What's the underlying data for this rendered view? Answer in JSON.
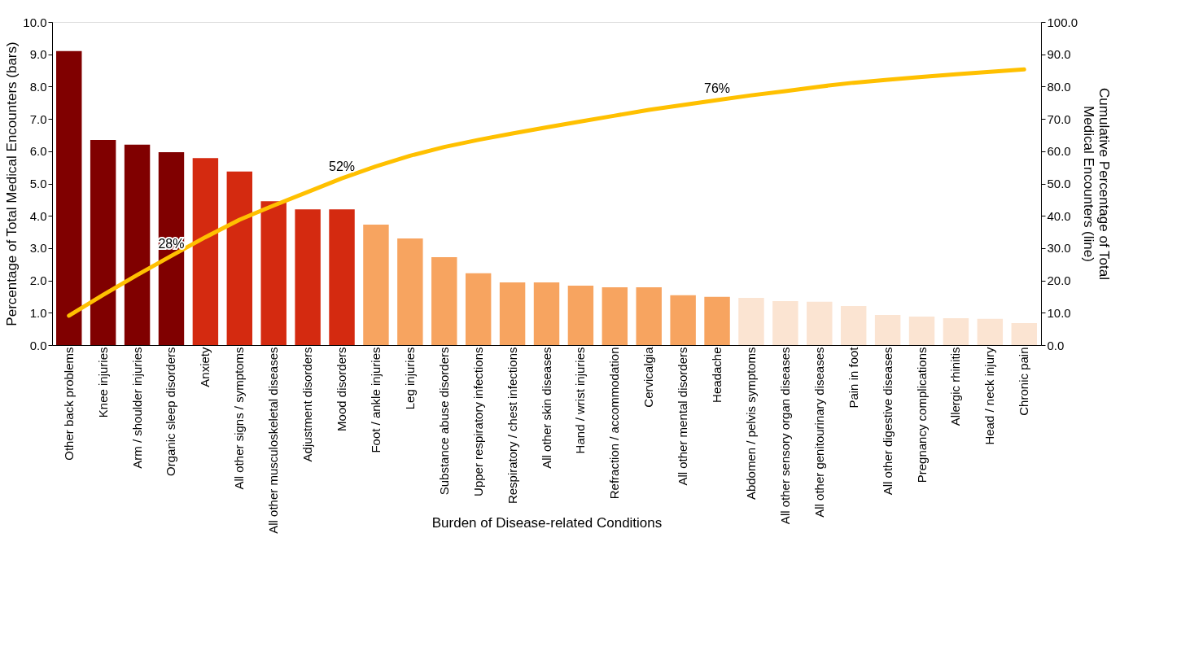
{
  "chart_data": {
    "type": "bar",
    "xlabel": "Burden of Disease-related Conditions",
    "ylabel": "Percentage of Total Medical Encounters (bars)",
    "y2label": "Cumulative Percentage of Total Medical Encounters (line)",
    "categories": [
      "Other back problems",
      "Knee injuries",
      "Arm / shoulder injuries",
      "Organic sleep disorders",
      "Anxiety",
      "All other signs / symptoms",
      "All other musculoskeletal diseases",
      "Adjustment disorders",
      "Mood disorders",
      "Foot / ankle injuries",
      "Leg injuries",
      "Substance abuse disorders",
      "Upper respiratory infections",
      "Respiratory / chest infections",
      "All other skin diseases",
      "Hand / wrist injuries",
      "Refraction / accommodation",
      "Cervicalgia",
      "All other mental disorders",
      "Headache",
      "Abdomen / pelvis symptoms",
      "All other sensory organ diseases",
      "All other genitourinary diseases",
      "Pain in foot",
      "All other digestive diseases",
      "Pregnancy complications",
      "Allergic rhinitis",
      "Head / neck injury",
      "Chronic pain"
    ],
    "series": [
      {
        "values": [
          9.1,
          6.35,
          6.2,
          5.97,
          5.79,
          5.37,
          4.45,
          4.2,
          4.2,
          3.73,
          3.3,
          2.72,
          2.22,
          1.94,
          1.94,
          1.84,
          1.79,
          1.79,
          1.54,
          1.49,
          1.46,
          1.36,
          1.34,
          1.21,
          0.93,
          0.88,
          0.83,
          0.81,
          0.68
        ],
        "colors": [
          "#800000",
          "#800000",
          "#800000",
          "#800000",
          "#d42a10",
          "#d42a10",
          "#d42a10",
          "#d42a10",
          "#d42a10",
          "#f7a460",
          "#f7a460",
          "#f7a460",
          "#f7a460",
          "#f7a460",
          "#f7a460",
          "#f7a460",
          "#f7a460",
          "#f7a460",
          "#f7a460",
          "#f7a460",
          "#fbe4d2",
          "#fbe4d2",
          "#fbe4d2",
          "#fbe4d2",
          "#fbe4d2",
          "#fbe4d2",
          "#fbe4d2",
          "#fbe4d2",
          "#fbe4d2"
        ]
      },
      {
        "type": "line",
        "axis": "y2",
        "color": "#ffc000",
        "values": [
          9.1,
          15.5,
          21.7,
          27.6,
          33.4,
          38.8,
          43.2,
          47.4,
          51.6,
          55.3,
          58.6,
          61.3,
          63.5,
          65.5,
          67.4,
          69.2,
          71.0,
          72.8,
          74.3,
          75.8,
          77.3,
          78.6,
          80.0,
          81.2,
          82.1,
          83.0,
          83.8,
          84.6,
          85.3
        ],
        "value_labels": [
          null,
          null,
          null,
          "28%",
          null,
          null,
          null,
          null,
          "52%",
          null,
          null,
          null,
          null,
          null,
          null,
          null,
          null,
          null,
          null,
          "76%",
          null,
          null,
          null,
          null,
          null,
          null,
          null,
          null,
          null
        ]
      }
    ],
    "ylim": [
      0,
      10
    ],
    "yticks": [
      {
        "value": 0,
        "label": "0.0"
      },
      {
        "value": 1,
        "label": "1.0"
      },
      {
        "value": 2,
        "label": "2.0"
      },
      {
        "value": 3,
        "label": "3.0"
      },
      {
        "value": 4,
        "label": "4.0"
      },
      {
        "value": 5,
        "label": "5.0"
      },
      {
        "value": 6,
        "label": "6.0"
      },
      {
        "value": 7,
        "label": "7.0"
      },
      {
        "value": 8,
        "label": "8.0"
      },
      {
        "value": 9,
        "label": "9.0"
      },
      {
        "value": 10,
        "label": "10.0"
      }
    ],
    "y2lim": [
      0,
      100
    ],
    "y2ticks": [
      {
        "value": 0,
        "label": "0.0"
      },
      {
        "value": 10,
        "label": "10.0"
      },
      {
        "value": 20,
        "label": "20.0"
      },
      {
        "value": 30,
        "label": "30.0"
      },
      {
        "value": 40,
        "label": "40.0"
      },
      {
        "value": 50,
        "label": "50.0"
      },
      {
        "value": 60,
        "label": "60.0"
      },
      {
        "value": 70,
        "label": "70.0"
      },
      {
        "value": 80,
        "label": "80.0"
      },
      {
        "value": 90,
        "label": "90.0"
      },
      {
        "value": 100,
        "label": "100.0"
      }
    ],
    "grid": false,
    "legend": false
  }
}
